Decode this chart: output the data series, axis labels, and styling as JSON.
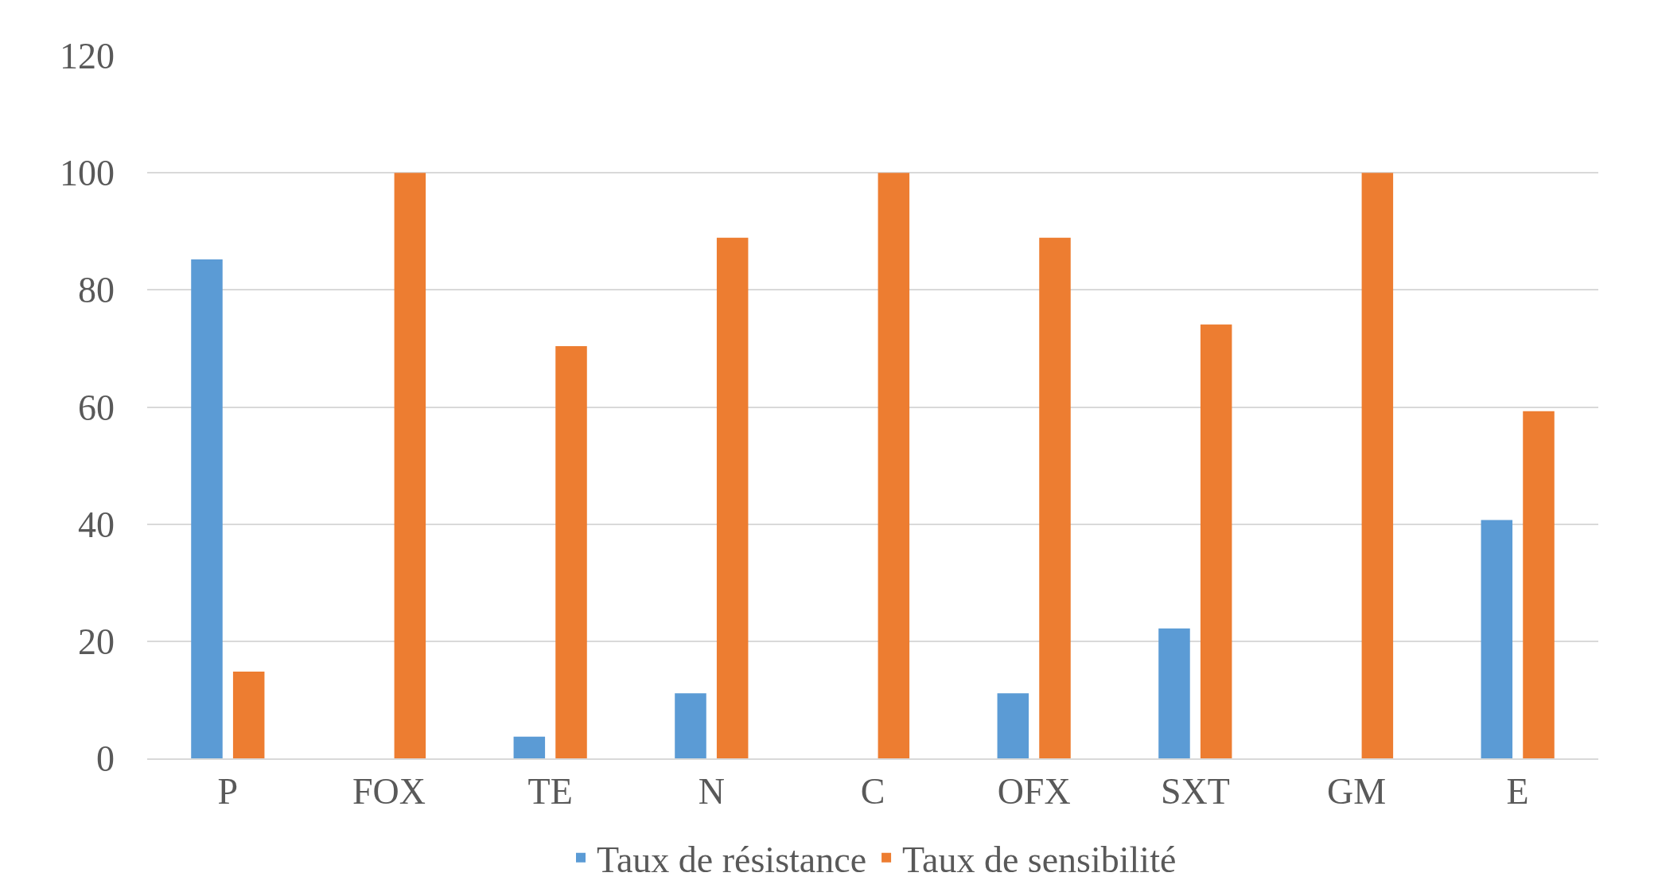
{
  "chart_data": {
    "type": "bar",
    "categories": [
      "P",
      "FOX",
      "TE",
      "N",
      "C",
      "OFX",
      "SXT",
      "GM",
      "E"
    ],
    "series": [
      {
        "name": "Taux de résistance",
        "color": "#5b9bd5",
        "values": [
          85.2,
          0,
          3.7,
          11.1,
          0,
          11.1,
          22.2,
          0,
          40.7
        ]
      },
      {
        "name": "Taux de sensibilité",
        "color": "#ed7d31",
        "values": [
          14.8,
          100,
          70.4,
          88.9,
          100,
          88.9,
          74.1,
          100,
          59.3
        ]
      }
    ],
    "ylim": [
      0,
      120
    ],
    "yticks": [
      0,
      20,
      40,
      60,
      80,
      100,
      120
    ],
    "grid": "y",
    "legend": "bottom"
  }
}
